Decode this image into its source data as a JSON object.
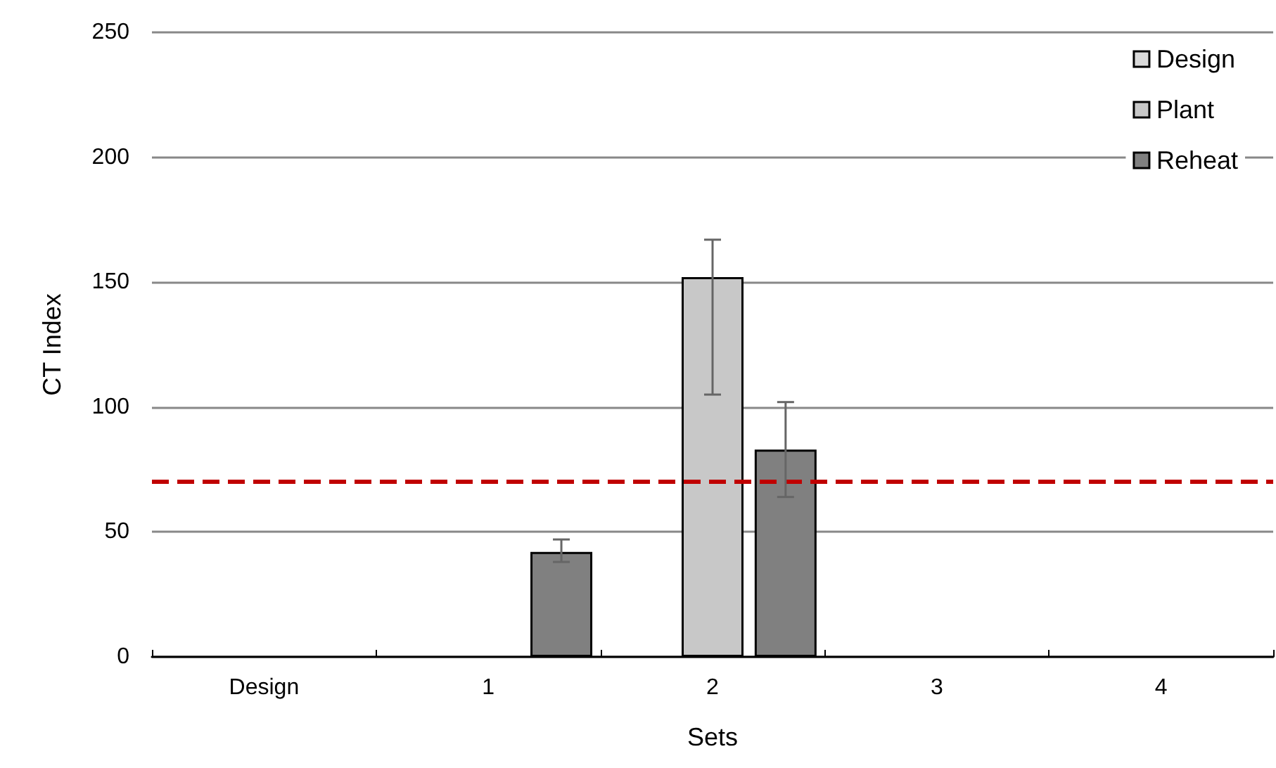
{
  "chart_data": {
    "type": "bar",
    "xlabel": "Sets",
    "ylabel": "CT Index",
    "categories": [
      "Design",
      "1",
      "2",
      "3",
      "4"
    ],
    "series": [
      {
        "name": "Design",
        "color": "#d9d9d9",
        "values": [
          null,
          null,
          null,
          null,
          null
        ]
      },
      {
        "name": "Plant",
        "color": "#c8c8c8",
        "values": [
          null,
          null,
          152,
          null,
          null
        ],
        "errors": [
          null,
          null,
          [
            105,
            167
          ],
          null,
          null
        ]
      },
      {
        "name": "Reheat",
        "color": "#808080",
        "values": [
          null,
          42,
          83,
          null,
          null
        ],
        "errors": [
          null,
          [
            38,
            47
          ],
          [
            64,
            102
          ],
          null,
          null
        ]
      }
    ],
    "ylim": [
      0,
      250
    ],
    "yticks": [
      0,
      50,
      100,
      150,
      200,
      250
    ],
    "grid": "y",
    "legend": "top right",
    "ref_lines": [
      {
        "axis": "y",
        "value": 70,
        "color": "#c00000",
        "line_style": "dashed"
      }
    ]
  }
}
